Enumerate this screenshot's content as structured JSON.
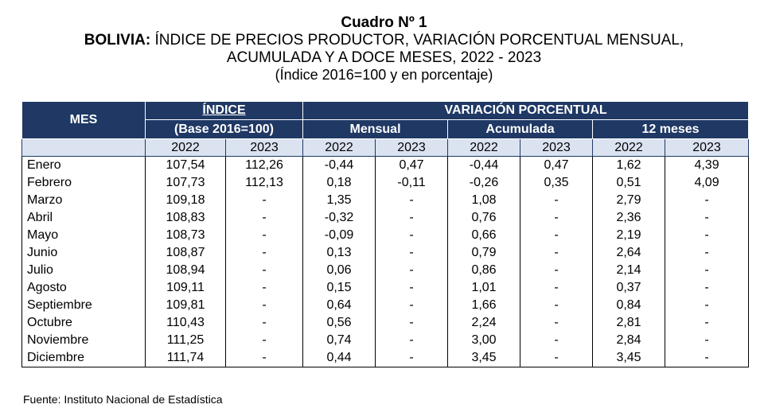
{
  "header": {
    "title": "Cuadro Nº 1",
    "subtitle_bold": "BOLIVIA:",
    "subtitle_rest": " ÍNDICE DE PRECIOS PRODUCTOR, VARIACIÓN PORCENTUAL MENSUAL,",
    "subtitle_line2": "ACUMULADA Y A DOCE MESES, 2022 - 2023",
    "units": "(Índice 2016=100 y en porcentaje)"
  },
  "table": {
    "col_mes": "MES",
    "indice_label": "ÍNDICE",
    "indice_base": "(Base 2016=100)",
    "variacion_label": "VARIACIÓN PORCENTUAL",
    "mensual_label": "Mensual",
    "acumulada_label": "Acumulada",
    "doce_label": "12 meses",
    "years": [
      "2022",
      "2023",
      "2022",
      "2023",
      "2022",
      "2023",
      "2022",
      "2023"
    ],
    "rows": [
      [
        "Enero",
        "107,54",
        "112,26",
        "-0,44",
        "0,47",
        "-0,44",
        "0,47",
        "1,62",
        "4,39"
      ],
      [
        "Febrero",
        "107,73",
        "112,13",
        "0,18",
        "-0,11",
        "-0,26",
        "0,35",
        "0,51",
        "4,09"
      ],
      [
        "Marzo",
        "109,18",
        "-",
        "1,35",
        "-",
        "1,08",
        "-",
        "2,79",
        "-"
      ],
      [
        "Abril",
        "108,83",
        "-",
        "-0,32",
        "-",
        "0,76",
        "-",
        "2,36",
        "-"
      ],
      [
        "Mayo",
        "108,73",
        "-",
        "-0,09",
        "-",
        "0,66",
        "-",
        "2,19",
        "-"
      ],
      [
        "Junio",
        "108,87",
        "-",
        "0,13",
        "-",
        "0,79",
        "-",
        "2,64",
        "-"
      ],
      [
        "Julio",
        "108,94",
        "-",
        "0,06",
        "-",
        "0,86",
        "-",
        "2,14",
        "-"
      ],
      [
        "Agosto",
        "109,11",
        "-",
        "0,15",
        "-",
        "1,01",
        "-",
        "0,37",
        "-"
      ],
      [
        "Septiembre",
        "109,81",
        "-",
        "0,64",
        "-",
        "1,66",
        "-",
        "0,84",
        "-"
      ],
      [
        "Octubre",
        "110,43",
        "-",
        "0,56",
        "-",
        "2,24",
        "-",
        "2,81",
        "-"
      ],
      [
        "Noviembre",
        "111,25",
        "-",
        "0,74",
        "-",
        "3,00",
        "-",
        "2,84",
        "-"
      ],
      [
        "Diciembre",
        "111,74",
        "-",
        "0,44",
        "-",
        "3,45",
        "-",
        "3,45",
        "-"
      ]
    ]
  },
  "footer": {
    "source": "Fuente: Instituto Nacional de Estadística"
  }
}
